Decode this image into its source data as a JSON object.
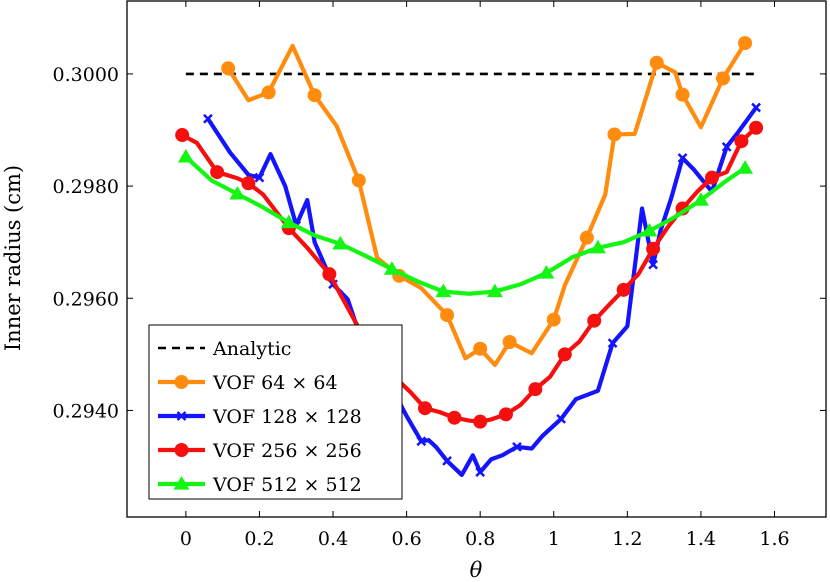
{
  "chart_data": {
    "type": "line",
    "title": "",
    "xlabel": "θ",
    "ylabel": "Inner radius (cm)",
    "xlim": [
      -0.16,
      1.74
    ],
    "ylim": [
      0.2921,
      0.3013
    ],
    "xticks": [
      0,
      0.2,
      0.4,
      0.6,
      0.8,
      1,
      1.2,
      1.4,
      1.6
    ],
    "xtick_labels": [
      "0",
      "0.2",
      "0.4",
      "0.6",
      "0.8",
      "1",
      "1.2",
      "1.4",
      "1.6"
    ],
    "yticks": [
      0.294,
      0.296,
      0.298,
      0.3
    ],
    "ytick_labels": [
      "0.2940",
      "0.2960",
      "0.2980",
      "0.3000"
    ],
    "grid": false,
    "legend_position": "bottom-left",
    "series": [
      {
        "name": "Analytic",
        "color": "#000000",
        "style": "dashed",
        "marker": "none",
        "x": [
          0,
          1.55
        ],
        "y": [
          0.3,
          0.3
        ]
      },
      {
        "name": "VOF 64 × 64",
        "color": "#ff8c0f",
        "style": "solid",
        "marker": "circle",
        "x": [
          0.115,
          0.17,
          0.225,
          0.29,
          0.35,
          0.41,
          0.47,
          0.52,
          0.58,
          0.64,
          0.71,
          0.76,
          0.8,
          0.84,
          0.88,
          0.94,
          1.0,
          1.03,
          1.09,
          1.14,
          1.165,
          1.22,
          1.28,
          1.33,
          1.35,
          1.4,
          1.46,
          1.52
        ],
        "y": [
          0.3001,
          0.29953,
          0.29967,
          0.3005,
          0.29962,
          0.29907,
          0.2981,
          0.29672,
          0.2964,
          0.29618,
          0.2957,
          0.29493,
          0.2951,
          0.29481,
          0.29522,
          0.29502,
          0.29562,
          0.29623,
          0.29708,
          0.29785,
          0.29892,
          0.29893,
          0.3002,
          0.30003,
          0.29963,
          0.29905,
          0.29992,
          0.30055
        ]
      },
      {
        "name": "VOF 128 × 128",
        "color": "#1414ff",
        "style": "solid",
        "marker": "x",
        "x": [
          0.06,
          0.12,
          0.17,
          0.2,
          0.23,
          0.27,
          0.3,
          0.33,
          0.35,
          0.4,
          0.44,
          0.48,
          0.52,
          0.56,
          0.6,
          0.64,
          0.66,
          0.68,
          0.71,
          0.75,
          0.78,
          0.8,
          0.83,
          0.86,
          0.9,
          0.94,
          0.97,
          1.02,
          1.06,
          1.12,
          1.16,
          1.2,
          1.24,
          1.27,
          1.29,
          1.32,
          1.35,
          1.38,
          1.43,
          1.47,
          1.5,
          1.55
        ],
        "y": [
          0.2992,
          0.2986,
          0.2982,
          0.29815,
          0.29857,
          0.298,
          0.2973,
          0.29775,
          0.297,
          0.29625,
          0.29598,
          0.2952,
          0.2948,
          0.2944,
          0.2939,
          0.29345,
          0.29347,
          0.29335,
          0.2931,
          0.29285,
          0.2932,
          0.2929,
          0.29313,
          0.2932,
          0.29335,
          0.29332,
          0.29355,
          0.29385,
          0.2942,
          0.29435,
          0.2952,
          0.2955,
          0.2976,
          0.2966,
          0.2972,
          0.2978,
          0.2985,
          0.2983,
          0.2979,
          0.2987,
          0.29895,
          0.2994
        ]
      },
      {
        "name": "VOF 256 × 256",
        "color": "#f50f0f",
        "style": "solid",
        "marker": "circle",
        "x": [
          -0.01,
          0.03,
          0.085,
          0.14,
          0.17,
          0.21,
          0.28,
          0.33,
          0.39,
          0.43,
          0.48,
          0.52,
          0.57,
          0.61,
          0.65,
          0.69,
          0.73,
          0.77,
          0.8,
          0.83,
          0.87,
          0.91,
          0.95,
          0.99,
          1.03,
          1.07,
          1.11,
          1.15,
          1.19,
          1.23,
          1.27,
          1.31,
          1.35,
          1.39,
          1.43,
          1.47,
          1.51,
          1.55
        ],
        "y": [
          0.29891,
          0.29877,
          0.29825,
          0.29814,
          0.29805,
          0.29785,
          0.29725,
          0.2969,
          0.29643,
          0.29595,
          0.29535,
          0.29482,
          0.29458,
          0.29433,
          0.29404,
          0.29397,
          0.29387,
          0.29382,
          0.2938,
          0.29384,
          0.29393,
          0.2941,
          0.29438,
          0.2946,
          0.295,
          0.29523,
          0.2956,
          0.29588,
          0.29615,
          0.29643,
          0.29688,
          0.29727,
          0.2976,
          0.2979,
          0.29815,
          0.29825,
          0.2988,
          0.29904
        ]
      },
      {
        "name": "VOF 512 × 512",
        "color": "#14f514",
        "style": "solid",
        "marker": "triangle",
        "x": [
          0.0,
          0.07,
          0.14,
          0.21,
          0.28,
          0.35,
          0.42,
          0.49,
          0.56,
          0.63,
          0.7,
          0.77,
          0.84,
          0.91,
          0.98,
          1.05,
          1.12,
          1.19,
          1.26,
          1.33,
          1.4,
          1.47,
          1.52
        ],
        "y": [
          0.29852,
          0.2981,
          0.29786,
          0.29762,
          0.29735,
          0.29712,
          0.29697,
          0.29675,
          0.29652,
          0.2963,
          0.29612,
          0.29608,
          0.29612,
          0.29625,
          0.29645,
          0.29673,
          0.2969,
          0.297,
          0.2972,
          0.29745,
          0.29775,
          0.2981,
          0.29832
        ]
      }
    ]
  }
}
